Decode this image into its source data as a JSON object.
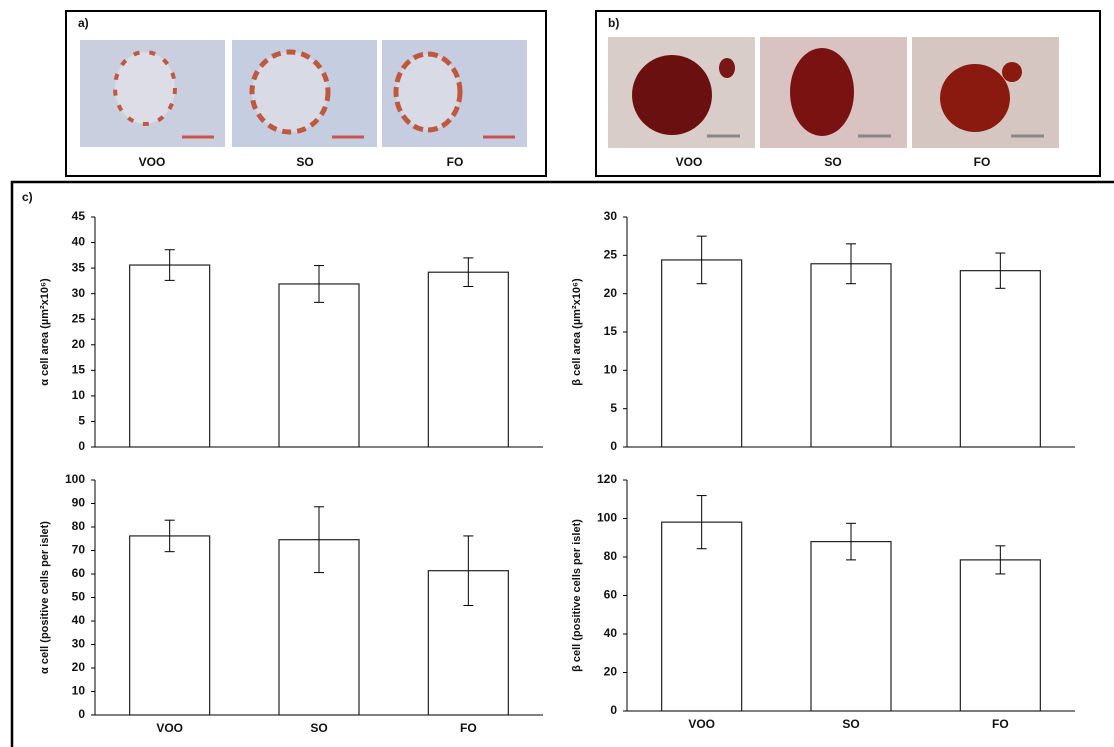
{
  "panel_a": {
    "label": "a)",
    "captions": [
      "VOO",
      "SO",
      "FO"
    ]
  },
  "panel_b": {
    "label": "b)",
    "captions": [
      "VOO",
      "SO",
      "FO"
    ]
  },
  "panel_c": {
    "label": "c)"
  },
  "chart_data": [
    {
      "type": "bar",
      "y_label": "α cell area (µm²x10⁶)",
      "categories": [
        null,
        null,
        null
      ],
      "values": [
        35.6,
        31.9,
        34.2
      ],
      "errors": [
        3.0,
        3.6,
        2.8
      ],
      "color": "#ffffff",
      "ylim": [
        0,
        45
      ],
      "yticks": [
        0,
        5,
        10,
        15,
        20,
        25,
        30,
        35,
        40,
        45
      ]
    },
    {
      "type": "bar",
      "y_label": "β cell area (µm²x10⁶)",
      "categories": [
        null,
        null,
        null
      ],
      "values": [
        24.4,
        23.9,
        23.0
      ],
      "errors": [
        3.1,
        2.6,
        2.3
      ],
      "color": "#ffffff",
      "ylim": [
        0,
        30
      ],
      "yticks": [
        0,
        5,
        10,
        15,
        20,
        25,
        30
      ]
    },
    {
      "type": "bar",
      "y_label": "α cell (positive cells per islet)",
      "categories": [
        "VOO",
        "SO",
        "FO"
      ],
      "values": [
        76.2,
        74.6,
        61.4
      ],
      "errors": [
        6.7,
        14.0,
        14.8
      ],
      "color": "#ffffff",
      "ylim": [
        0,
        100
      ],
      "yticks": [
        0,
        10,
        20,
        30,
        40,
        50,
        60,
        70,
        80,
        90,
        100
      ]
    },
    {
      "type": "bar",
      "y_label": "β cell (positive cells per islet)",
      "categories": [
        "VOO",
        "SO",
        "FO"
      ],
      "values": [
        98.1,
        88.0,
        78.5
      ],
      "errors": [
        13.8,
        9.5,
        7.3
      ],
      "color": "#ffffff",
      "ylim": [
        0,
        120
      ],
      "yticks": [
        0,
        20,
        40,
        60,
        80,
        100,
        120
      ]
    }
  ]
}
